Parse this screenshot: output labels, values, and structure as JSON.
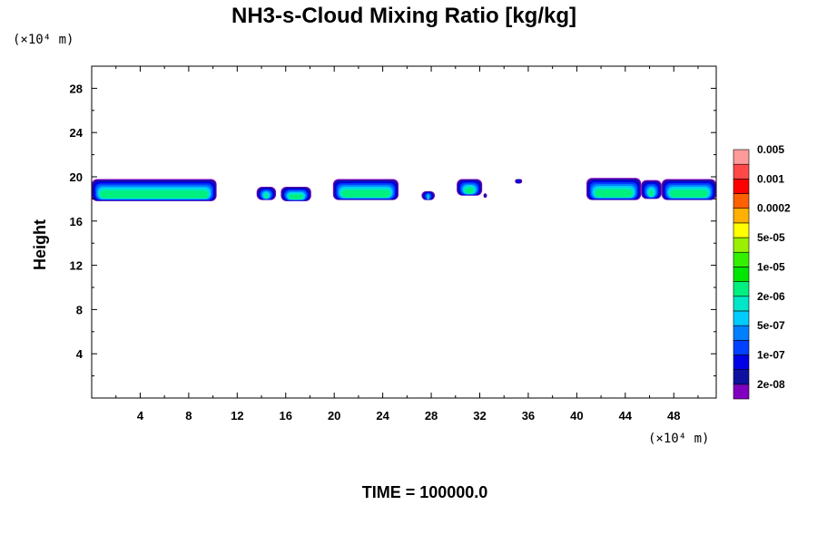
{
  "chart_data": {
    "type": "heatmap",
    "title": "NH3-s-Cloud Mixing Ratio [kg/kg]",
    "xlabel": "",
    "ylabel": "Height",
    "x_unit_label": "(×10⁴ m)",
    "y_unit_label": "(×10⁴ m)",
    "xlim": [
      0,
      51.5
    ],
    "ylim": [
      0,
      30
    ],
    "x_ticks": [
      4,
      8,
      12,
      16,
      20,
      24,
      28,
      32,
      36,
      40,
      44,
      48
    ],
    "y_ticks": [
      4,
      8,
      12,
      16,
      20,
      24,
      28
    ],
    "time_label": "TIME = 100000.0",
    "colorbar": {
      "colors": [
        "#7f00bf",
        "#1010a0",
        "#0000e6",
        "#0040ff",
        "#0080ff",
        "#00ccff",
        "#00e6c8",
        "#00f080",
        "#00e600",
        "#33f000",
        "#9af000",
        "#ffff00",
        "#ffb000",
        "#ff6000",
        "#ff0000",
        "#ff4848",
        "#ff9a9a"
      ],
      "tick_labels": [
        "2e-08",
        "1e-07",
        "5e-07",
        "2e-06",
        "1e-05",
        "5e-05",
        "0.0002",
        "0.001",
        "0.005"
      ]
    },
    "cloud_patches": [
      {
        "x0": 0,
        "x1": 10.3,
        "y_bottom": 17.8,
        "y_top": 19.8
      },
      {
        "x0": 13.6,
        "x1": 15.2,
        "y_bottom": 17.9,
        "y_top": 19.1
      },
      {
        "x0": 15.6,
        "x1": 18.1,
        "y_bottom": 17.8,
        "y_top": 19.1
      },
      {
        "x0": 19.9,
        "x1": 25.3,
        "y_bottom": 17.9,
        "y_top": 19.8
      },
      {
        "x0": 27.2,
        "x1": 28.3,
        "y_bottom": 17.9,
        "y_top": 18.7
      },
      {
        "x0": 30.1,
        "x1": 32.2,
        "y_bottom": 18.3,
        "y_top": 19.8
      },
      {
        "x0": 32.3,
        "x1": 32.6,
        "y_bottom": 18.1,
        "y_top": 18.5
      },
      {
        "x0": 34.9,
        "x1": 35.5,
        "y_bottom": 19.4,
        "y_top": 19.8
      },
      {
        "x0": 40.8,
        "x1": 45.3,
        "y_bottom": 17.9,
        "y_top": 19.9
      },
      {
        "x0": 45.3,
        "x1": 47.0,
        "y_bottom": 18.0,
        "y_top": 19.7
      },
      {
        "x0": 47.0,
        "x1": 51.5,
        "y_bottom": 17.9,
        "y_top": 19.8
      }
    ]
  }
}
